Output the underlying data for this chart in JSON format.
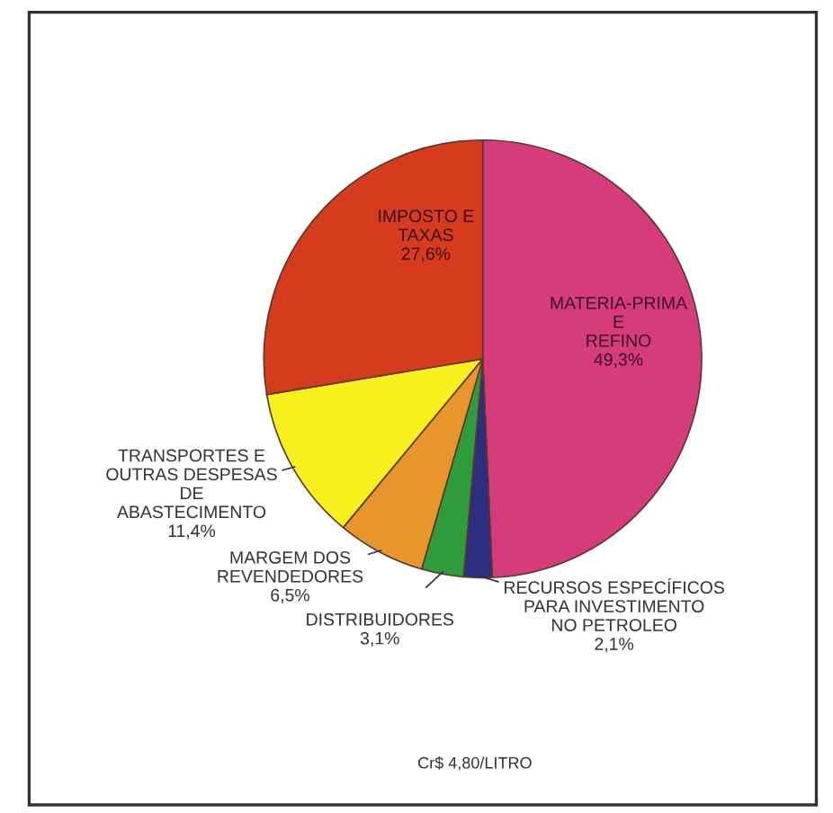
{
  "chart_data": {
    "type": "pie",
    "categories": [
      "MATERIA-PRIMA\nE\nREFINO",
      "RECURSOS ESPECÍFICOS\nPARA INVESTIMENTO\nNO PETROLEO",
      "DISTRIBUIDORES",
      "MARGEM DOS\nREVENDEDORES",
      "TRANSPORTES E\nOUTRAS DESPESAS\nDE\nABASTECIMENTO",
      "IMPOSTO E\nTAXAS"
    ],
    "values": [
      49.3,
      2.1,
      3.1,
      6.5,
      11.4,
      27.6
    ],
    "value_labels": [
      "49,3%",
      "2,1%",
      "3,1%",
      "6,5%",
      "11,4%",
      "27,6%"
    ],
    "colors": [
      "#d63c7c",
      "#2e2e80",
      "#2f9c3c",
      "#e8962c",
      "#f8f01c",
      "#d63b1e"
    ],
    "annotations": [
      "Cr$ 4,80/LITRO"
    ]
  }
}
